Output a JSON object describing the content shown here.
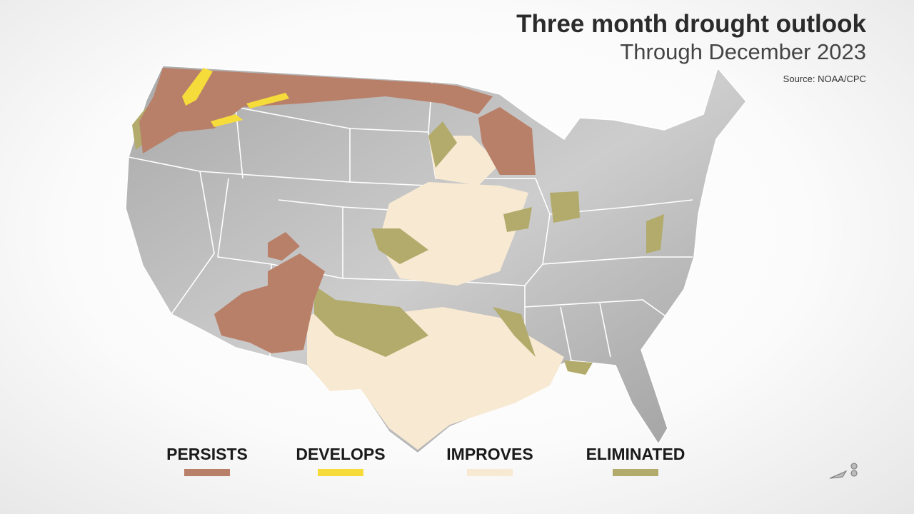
{
  "header": {
    "title": "Three month drought outlook",
    "subtitle": "Through December 2023",
    "source": "Source: NOAA/CPC"
  },
  "legend": {
    "items": [
      {
        "label": "PERSISTS",
        "color": "#b98069"
      },
      {
        "label": "DEVELOPS",
        "color": "#f6dc3a"
      },
      {
        "label": "IMPROVES",
        "color": "#f7e9d2"
      },
      {
        "label": "ELIMINATED",
        "color": "#b2ab6b"
      }
    ]
  }
}
